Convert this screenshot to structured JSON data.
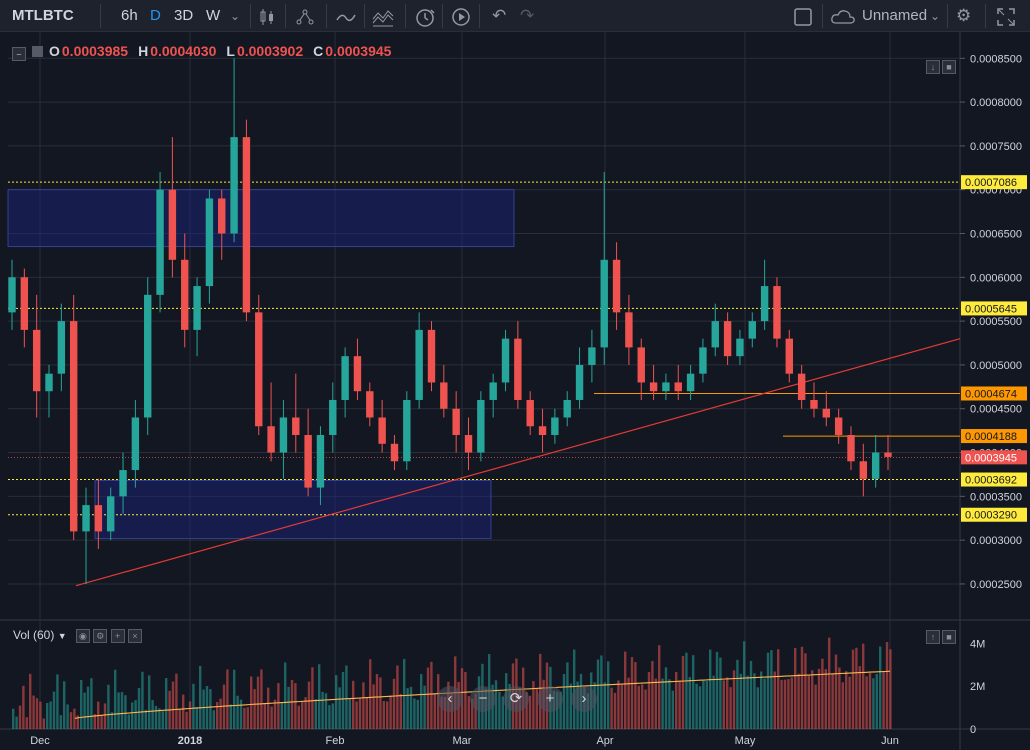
{
  "toolbar": {
    "symbol": "MTLBTC",
    "intervals": [
      "6h",
      "D",
      "3D",
      "W"
    ],
    "active_interval": "D",
    "layout_name": "Unnamed"
  },
  "legend": {
    "open_key": "O",
    "open": "0.0003985",
    "high_key": "H",
    "high": "0.0004030",
    "low_key": "L",
    "low": "0.0003902",
    "close_key": "C",
    "close": "0.0003945"
  },
  "volume_legend": {
    "label": "Vol (60)"
  },
  "colors": {
    "up": "#26a69a",
    "down": "#ef5350",
    "level": "#ffeb3b",
    "resistance": "#ff9800",
    "trend": "#e53935",
    "zone": "#1a237e"
  },
  "chart_data": {
    "type": "candlestick",
    "x_labels": [
      "Dec",
      "2018",
      "Feb",
      "Mar",
      "Apr",
      "May",
      "Jun"
    ],
    "y_ticks": [
      "0.0008500",
      "0.0008000",
      "0.0007500",
      "0.0007000",
      "0.0006500",
      "0.0006000",
      "0.0005500",
      "0.0005000",
      "0.0004500",
      "0.0004000",
      "0.0003500",
      "0.0003000",
      "0.0002500"
    ],
    "y_range": [
      0.00021,
      0.00088
    ],
    "price_labels": [
      {
        "value": 0.0007086,
        "text": "0.0007086",
        "color": "#ffeb3b"
      },
      {
        "value": 0.0005645,
        "text": "0.0005645",
        "color": "#ffeb3b"
      },
      {
        "value": 0.0004674,
        "text": "0.0004674",
        "color": "#ff9800"
      },
      {
        "value": 0.0004188,
        "text": "0.0004188",
        "color": "#ff9800"
      },
      {
        "value": 0.0003692,
        "text": "0.0003692",
        "color": "#ffeb3b"
      },
      {
        "value": 0.000329,
        "text": "0.0003290",
        "color": "#ffeb3b"
      }
    ],
    "volume_ticks": [
      "4M",
      "2M",
      "0"
    ],
    "volume_ma_period": 60,
    "candles_estimated": [
      [
        0.00056,
        0.00062,
        0.00054,
        0.0006
      ],
      [
        0.0006,
        0.00061,
        0.00052,
        0.00054
      ],
      [
        0.00054,
        0.00058,
        0.00044,
        0.00047
      ],
      [
        0.00047,
        0.0005,
        0.00044,
        0.00049
      ],
      [
        0.00049,
        0.00057,
        0.00047,
        0.00055
      ],
      [
        0.00055,
        0.00058,
        0.0003,
        0.00031
      ],
      [
        0.00031,
        0.00036,
        0.00025,
        0.00034
      ],
      [
        0.00034,
        0.00037,
        0.00029,
        0.00031
      ],
      [
        0.00031,
        0.00036,
        0.0003,
        0.00035
      ],
      [
        0.00035,
        0.0004,
        0.00033,
        0.00038
      ],
      [
        0.00038,
        0.00046,
        0.00036,
        0.00044
      ],
      [
        0.00044,
        0.0006,
        0.00042,
        0.00058
      ],
      [
        0.00058,
        0.00072,
        0.00056,
        0.0007
      ],
      [
        0.0007,
        0.00076,
        0.0006,
        0.00062
      ],
      [
        0.00062,
        0.00065,
        0.00052,
        0.00054
      ],
      [
        0.00054,
        0.0006,
        0.00051,
        0.00059
      ],
      [
        0.00059,
        0.0007,
        0.00057,
        0.00069
      ],
      [
        0.00069,
        0.0007,
        0.00062,
        0.00065
      ],
      [
        0.00065,
        0.00085,
        0.00064,
        0.00076
      ],
      [
        0.00076,
        0.00078,
        0.00055,
        0.00056
      ],
      [
        0.00056,
        0.00058,
        0.00042,
        0.00043
      ],
      [
        0.00043,
        0.00048,
        0.00039,
        0.0004
      ],
      [
        0.0004,
        0.00046,
        0.00037,
        0.00044
      ],
      [
        0.00044,
        0.00049,
        0.0004,
        0.00042
      ],
      [
        0.00042,
        0.00045,
        0.00035,
        0.00036
      ],
      [
        0.00036,
        0.00043,
        0.00034,
        0.00042
      ],
      [
        0.00042,
        0.00048,
        0.0004,
        0.00046
      ],
      [
        0.00046,
        0.00052,
        0.00044,
        0.00051
      ],
      [
        0.00051,
        0.00053,
        0.00046,
        0.00047
      ],
      [
        0.00047,
        0.00048,
        0.00043,
        0.00044
      ],
      [
        0.00044,
        0.00046,
        0.0004,
        0.00041
      ],
      [
        0.00041,
        0.00042,
        0.00038,
        0.00039
      ],
      [
        0.00039,
        0.00047,
        0.00038,
        0.00046
      ],
      [
        0.00046,
        0.00056,
        0.00045,
        0.00054
      ],
      [
        0.00054,
        0.00055,
        0.00047,
        0.00048
      ],
      [
        0.00048,
        0.0005,
        0.00044,
        0.00045
      ],
      [
        0.00045,
        0.00047,
        0.0004,
        0.00042
      ],
      [
        0.00042,
        0.00044,
        0.00038,
        0.0004
      ],
      [
        0.0004,
        0.00047,
        0.00039,
        0.00046
      ],
      [
        0.00046,
        0.00049,
        0.00044,
        0.00048
      ],
      [
        0.00048,
        0.00054,
        0.00047,
        0.00053
      ],
      [
        0.00053,
        0.00055,
        0.00045,
        0.00046
      ],
      [
        0.00046,
        0.00047,
        0.00042,
        0.00043
      ],
      [
        0.00043,
        0.00045,
        0.0004,
        0.00042
      ],
      [
        0.00042,
        0.00045,
        0.00041,
        0.00044
      ],
      [
        0.00044,
        0.00047,
        0.00043,
        0.00046
      ],
      [
        0.00046,
        0.00052,
        0.00045,
        0.0005
      ],
      [
        0.0005,
        0.00054,
        0.00048,
        0.00052
      ],
      [
        0.00052,
        0.00072,
        0.0005,
        0.00062
      ],
      [
        0.00062,
        0.00064,
        0.00054,
        0.00056
      ],
      [
        0.00056,
        0.00058,
        0.0005,
        0.00052
      ],
      [
        0.00052,
        0.00053,
        0.00046,
        0.00048
      ],
      [
        0.00048,
        0.0005,
        0.00046,
        0.00047
      ],
      [
        0.00047,
        0.00049,
        0.00046,
        0.00048
      ],
      [
        0.00048,
        0.0005,
        0.00046,
        0.00047
      ],
      [
        0.00047,
        0.0005,
        0.00046,
        0.00049
      ],
      [
        0.00049,
        0.00053,
        0.00048,
        0.00052
      ],
      [
        0.00052,
        0.00057,
        0.00051,
        0.00055
      ],
      [
        0.00055,
        0.00056,
        0.0005,
        0.00051
      ],
      [
        0.00051,
        0.00054,
        0.0005,
        0.00053
      ],
      [
        0.00053,
        0.00056,
        0.00052,
        0.00055
      ],
      [
        0.00055,
        0.00062,
        0.00054,
        0.00059
      ],
      [
        0.00059,
        0.0006,
        0.00052,
        0.00053
      ],
      [
        0.00053,
        0.00054,
        0.00048,
        0.00049
      ],
      [
        0.00049,
        0.0005,
        0.00045,
        0.00046
      ],
      [
        0.00046,
        0.00048,
        0.00044,
        0.00045
      ],
      [
        0.00045,
        0.00047,
        0.00043,
        0.00044
      ],
      [
        0.00044,
        0.00045,
        0.00041,
        0.00042
      ],
      [
        0.00042,
        0.00043,
        0.00038,
        0.00039
      ],
      [
        0.00039,
        0.00041,
        0.00035,
        0.00037
      ],
      [
        0.00037,
        0.00042,
        0.00036,
        0.0004
      ],
      [
        0.0004,
        0.00042,
        0.00038,
        0.000395
      ]
    ]
  }
}
